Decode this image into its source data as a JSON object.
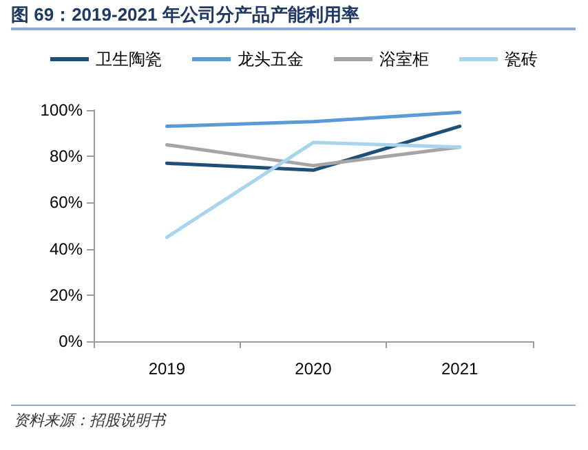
{
  "chart_data": {
    "type": "line",
    "title": "图 69：2019-2021 年公司分产品产能利用率",
    "categories": [
      "2019",
      "2020",
      "2021"
    ],
    "series": [
      {
        "name": "卫生陶瓷",
        "color": "#1f4e79",
        "values": [
          77,
          74,
          93
        ]
      },
      {
        "name": "龙头五金",
        "color": "#5b9bd5",
        "values": [
          93,
          95,
          99
        ]
      },
      {
        "name": "浴室柜",
        "color": "#a5a5a5",
        "values": [
          85,
          76,
          84
        ]
      },
      {
        "name": "瓷砖",
        "color": "#a9d4ee",
        "values": [
          45,
          86,
          84
        ]
      }
    ],
    "ylim": [
      0,
      100
    ],
    "yticks": [
      {
        "value": 0,
        "label": "0%"
      },
      {
        "value": 20,
        "label": "20%"
      },
      {
        "value": 40,
        "label": "40%"
      },
      {
        "value": 60,
        "label": "60%"
      },
      {
        "value": 80,
        "label": "80%"
      },
      {
        "value": 100,
        "label": "100%"
      }
    ],
    "grid": false,
    "legend": "top",
    "marker": "none",
    "line_style": "solid",
    "annotations": [
      "资料来源：招股说明书"
    ]
  }
}
